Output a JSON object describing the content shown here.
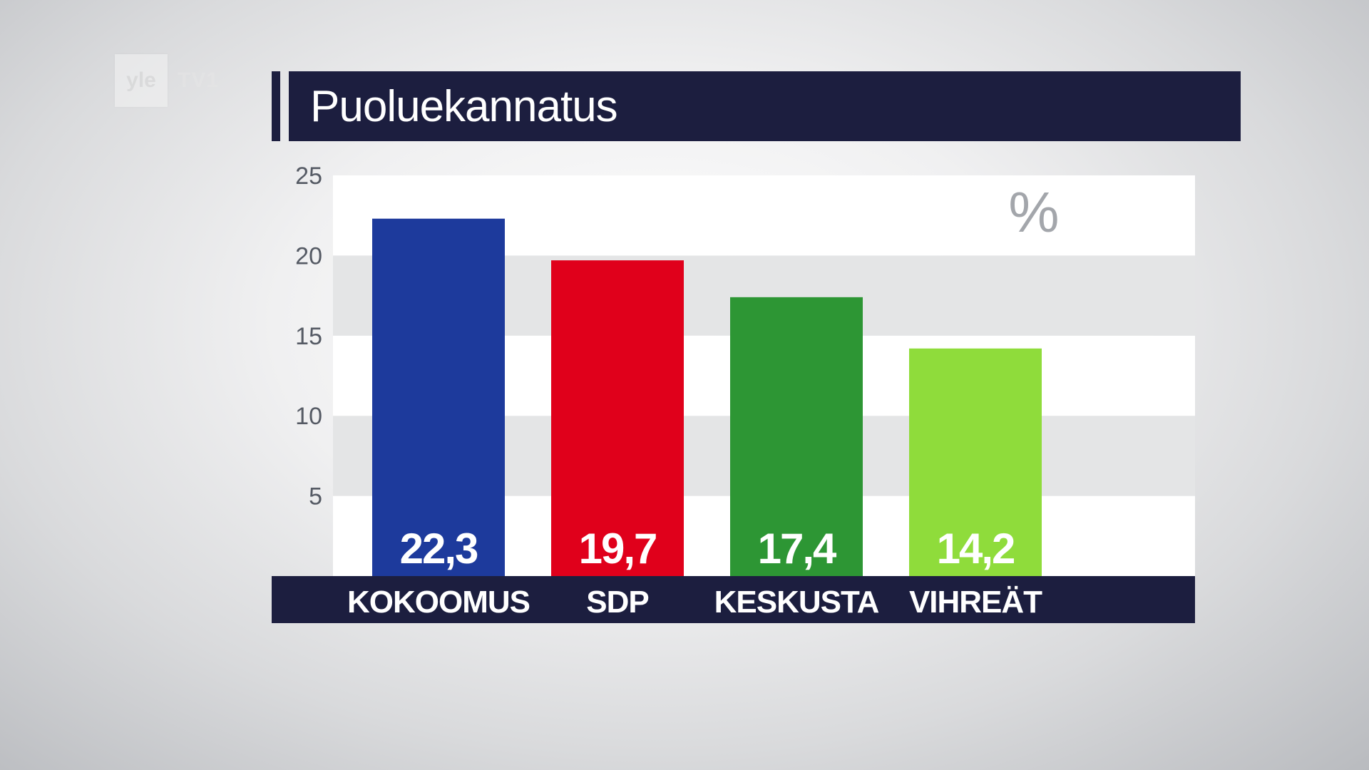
{
  "logo": {
    "name": "yle",
    "channel": "TV1"
  },
  "colors": {
    "navy": "#1c1e3f",
    "band_light": "#ffffff",
    "band_dark": "#e4e5e6",
    "tick_text": "#555a64"
  },
  "chart_data": {
    "type": "bar",
    "title": "Puoluekannatus",
    "unit": "%",
    "categories": [
      "KOKOOMUS",
      "SDP",
      "KESKUSTA",
      "VIHREÄT"
    ],
    "values": [
      22.3,
      19.7,
      17.4,
      14.2
    ],
    "value_labels": [
      "22,3",
      "19,7",
      "17,4",
      "14,2"
    ],
    "bar_colors": [
      "#1d3a9c",
      "#e0001b",
      "#2d9634",
      "#8fdc3b"
    ],
    "ylim": [
      0,
      25
    ],
    "yticks": [
      5,
      10,
      15,
      20,
      25
    ],
    "ytick_labels": [
      "5",
      "10",
      "15",
      "20",
      "25"
    ],
    "grid": "alternating horizontal bands",
    "legend": "none"
  }
}
